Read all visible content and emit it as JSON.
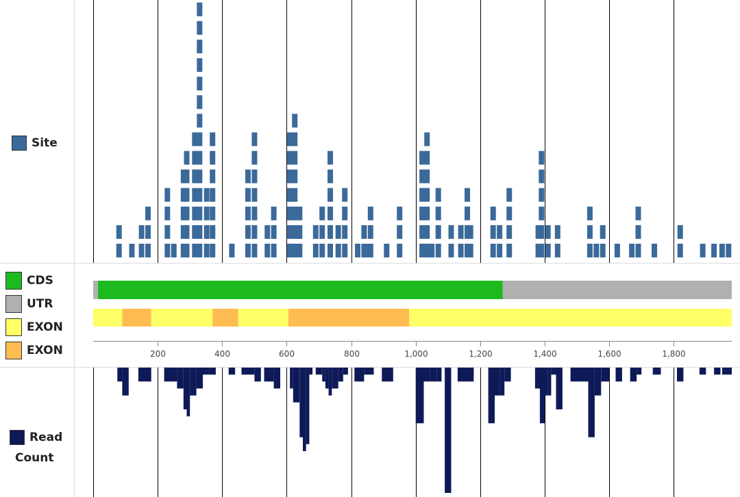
{
  "legend": {
    "site": {
      "label": "Site",
      "color": "#3b6a9a"
    },
    "cds": {
      "label": "CDS",
      "color": "#1cba1f"
    },
    "utr": {
      "label": "UTR",
      "color": "#b0b0b0"
    },
    "exon_light": {
      "label": "EXON",
      "color": "#ffff66"
    },
    "exon_orange": {
      "label": "EXON",
      "color": "#ffbc52"
    },
    "read_count": {
      "label_line1": "Read",
      "label_line2": "Count",
      "color": "#0e1a57"
    }
  },
  "chart_data": {
    "type": "bar",
    "x_range": [
      0,
      1980
    ],
    "grid": "vertical lines every 200",
    "x_ticks": [
      {
        "value": 200,
        "label": "200"
      },
      {
        "value": 400,
        "label": "400"
      },
      {
        "value": 600,
        "label": "600"
      },
      {
        "value": 800,
        "label": "800"
      },
      {
        "value": 1000,
        "label": "1,000"
      },
      {
        "value": 1200,
        "label": "1,200"
      },
      {
        "value": 1400,
        "label": "1,400"
      },
      {
        "value": 1600,
        "label": "1,600"
      },
      {
        "value": 1800,
        "label": "1,800"
      }
    ],
    "site_bin_width": 20,
    "site_stacks": [
      {
        "x": 80,
        "count": 2
      },
      {
        "x": 120,
        "count": 1
      },
      {
        "x": 150,
        "count": 2
      },
      {
        "x": 170,
        "count": 3
      },
      {
        "x": 230,
        "count": 4
      },
      {
        "x": 250,
        "count": 1
      },
      {
        "x": 280,
        "count": 5
      },
      {
        "x": 290,
        "count": 6
      },
      {
        "x": 315,
        "count": 7
      },
      {
        "x": 330,
        "count": 14
      },
      {
        "x": 352,
        "count": 4
      },
      {
        "x": 370,
        "count": 7
      },
      {
        "x": 430,
        "count": 1
      },
      {
        "x": 480,
        "count": 5
      },
      {
        "x": 500,
        "count": 7
      },
      {
        "x": 540,
        "count": 2
      },
      {
        "x": 560,
        "count": 3
      },
      {
        "x": 610,
        "count": 7
      },
      {
        "x": 625,
        "count": 8
      },
      {
        "x": 640,
        "count": 3
      },
      {
        "x": 690,
        "count": 2
      },
      {
        "x": 710,
        "count": 3
      },
      {
        "x": 735,
        "count": 6
      },
      {
        "x": 760,
        "count": 2
      },
      {
        "x": 780,
        "count": 4
      },
      {
        "x": 820,
        "count": 1
      },
      {
        "x": 840,
        "count": 2
      },
      {
        "x": 850,
        "count": 1
      },
      {
        "x": 860,
        "count": 3
      },
      {
        "x": 910,
        "count": 1
      },
      {
        "x": 950,
        "count": 3
      },
      {
        "x": 1020,
        "count": 6
      },
      {
        "x": 1035,
        "count": 7
      },
      {
        "x": 1050,
        "count": 1
      },
      {
        "x": 1070,
        "count": 4
      },
      {
        "x": 1110,
        "count": 2
      },
      {
        "x": 1140,
        "count": 2
      },
      {
        "x": 1160,
        "count": 4
      },
      {
        "x": 1170,
        "count": 2
      },
      {
        "x": 1240,
        "count": 3
      },
      {
        "x": 1260,
        "count": 2
      },
      {
        "x": 1290,
        "count": 4
      },
      {
        "x": 1380,
        "count": 2
      },
      {
        "x": 1390,
        "count": 6
      },
      {
        "x": 1410,
        "count": 2
      },
      {
        "x": 1440,
        "count": 2
      },
      {
        "x": 1540,
        "count": 3
      },
      {
        "x": 1560,
        "count": 1
      },
      {
        "x": 1580,
        "count": 2
      },
      {
        "x": 1625,
        "count": 1
      },
      {
        "x": 1670,
        "count": 1
      },
      {
        "x": 1690,
        "count": 3
      },
      {
        "x": 1740,
        "count": 1
      },
      {
        "x": 1820,
        "count": 2
      },
      {
        "x": 1890,
        "count": 1
      },
      {
        "x": 1925,
        "count": 1
      },
      {
        "x": 1950,
        "count": 1
      },
      {
        "x": 1970,
        "count": 1
      }
    ],
    "read_count_bars": [
      {
        "x": 75,
        "x2": 90,
        "v": 20
      },
      {
        "x": 90,
        "x2": 110,
        "v": 40
      },
      {
        "x": 140,
        "x2": 180,
        "v": 20
      },
      {
        "x": 220,
        "x2": 260,
        "v": 20
      },
      {
        "x": 260,
        "x2": 280,
        "v": 30
      },
      {
        "x": 280,
        "x2": 290,
        "v": 60
      },
      {
        "x": 290,
        "x2": 300,
        "v": 70
      },
      {
        "x": 300,
        "x2": 320,
        "v": 40
      },
      {
        "x": 320,
        "x2": 340,
        "v": 30
      },
      {
        "x": 340,
        "x2": 360,
        "v": 10
      },
      {
        "x": 360,
        "x2": 380,
        "v": 10
      },
      {
        "x": 420,
        "x2": 440,
        "v": 10
      },
      {
        "x": 460,
        "x2": 500,
        "v": 10
      },
      {
        "x": 500,
        "x2": 520,
        "v": 20
      },
      {
        "x": 530,
        "x2": 560,
        "v": 20
      },
      {
        "x": 560,
        "x2": 580,
        "v": 30
      },
      {
        "x": 610,
        "x2": 620,
        "v": 30
      },
      {
        "x": 620,
        "x2": 640,
        "v": 50
      },
      {
        "x": 640,
        "x2": 650,
        "v": 100
      },
      {
        "x": 650,
        "x2": 660,
        "v": 120
      },
      {
        "x": 660,
        "x2": 670,
        "v": 110
      },
      {
        "x": 670,
        "x2": 680,
        "v": 10
      },
      {
        "x": 690,
        "x2": 710,
        "v": 10
      },
      {
        "x": 710,
        "x2": 720,
        "v": 20
      },
      {
        "x": 720,
        "x2": 730,
        "v": 30
      },
      {
        "x": 730,
        "x2": 740,
        "v": 40
      },
      {
        "x": 740,
        "x2": 760,
        "v": 30
      },
      {
        "x": 760,
        "x2": 775,
        "v": 20
      },
      {
        "x": 775,
        "x2": 790,
        "v": 10
      },
      {
        "x": 810,
        "x2": 840,
        "v": 20
      },
      {
        "x": 840,
        "x2": 870,
        "v": 10
      },
      {
        "x": 895,
        "x2": 930,
        "v": 20
      },
      {
        "x": 1000,
        "x2": 1025,
        "v": 80
      },
      {
        "x": 1025,
        "x2": 1045,
        "v": 20
      },
      {
        "x": 1045,
        "x2": 1065,
        "v": 20
      },
      {
        "x": 1065,
        "x2": 1080,
        "v": 20
      },
      {
        "x": 1090,
        "x2": 1110,
        "v": 180
      },
      {
        "x": 1130,
        "x2": 1160,
        "v": 20
      },
      {
        "x": 1160,
        "x2": 1180,
        "v": 20
      },
      {
        "x": 1225,
        "x2": 1245,
        "v": 80
      },
      {
        "x": 1245,
        "x2": 1260,
        "v": 40
      },
      {
        "x": 1260,
        "x2": 1275,
        "v": 40
      },
      {
        "x": 1275,
        "x2": 1295,
        "v": 20
      },
      {
        "x": 1370,
        "x2": 1385,
        "v": 30
      },
      {
        "x": 1385,
        "x2": 1400,
        "v": 80
      },
      {
        "x": 1400,
        "x2": 1410,
        "v": 40
      },
      {
        "x": 1410,
        "x2": 1420,
        "v": 40
      },
      {
        "x": 1420,
        "x2": 1435,
        "v": 10
      },
      {
        "x": 1435,
        "x2": 1455,
        "v": 60
      },
      {
        "x": 1480,
        "x2": 1535,
        "v": 20
      },
      {
        "x": 1535,
        "x2": 1555,
        "v": 100
      },
      {
        "x": 1555,
        "x2": 1575,
        "v": 40
      },
      {
        "x": 1575,
        "x2": 1600,
        "v": 20
      },
      {
        "x": 1620,
        "x2": 1640,
        "v": 20
      },
      {
        "x": 1665,
        "x2": 1685,
        "v": 20
      },
      {
        "x": 1685,
        "x2": 1700,
        "v": 10
      },
      {
        "x": 1735,
        "x2": 1760,
        "v": 10
      },
      {
        "x": 1810,
        "x2": 1830,
        "v": 20
      },
      {
        "x": 1880,
        "x2": 1900,
        "v": 10
      },
      {
        "x": 1925,
        "x2": 1945,
        "v": 10
      },
      {
        "x": 1950,
        "x2": 1980,
        "v": 10
      }
    ],
    "read_count_max": 180,
    "transcript": [
      {
        "type": "utr",
        "start": 0,
        "end": 15
      },
      {
        "type": "cds",
        "start": 15,
        "end": 1270
      },
      {
        "type": "utr",
        "start": 1270,
        "end": 1980
      }
    ],
    "exons": [
      {
        "type": "exon_light",
        "start": 0,
        "end": 90
      },
      {
        "type": "exon_orange",
        "start": 90,
        "end": 180
      },
      {
        "type": "exon_light",
        "start": 180,
        "end": 370
      },
      {
        "type": "exon_orange",
        "start": 370,
        "end": 450
      },
      {
        "type": "exon_light",
        "start": 450,
        "end": 605
      },
      {
        "type": "exon_orange",
        "start": 605,
        "end": 980
      },
      {
        "type": "exon_light",
        "start": 980,
        "end": 1980
      }
    ]
  }
}
